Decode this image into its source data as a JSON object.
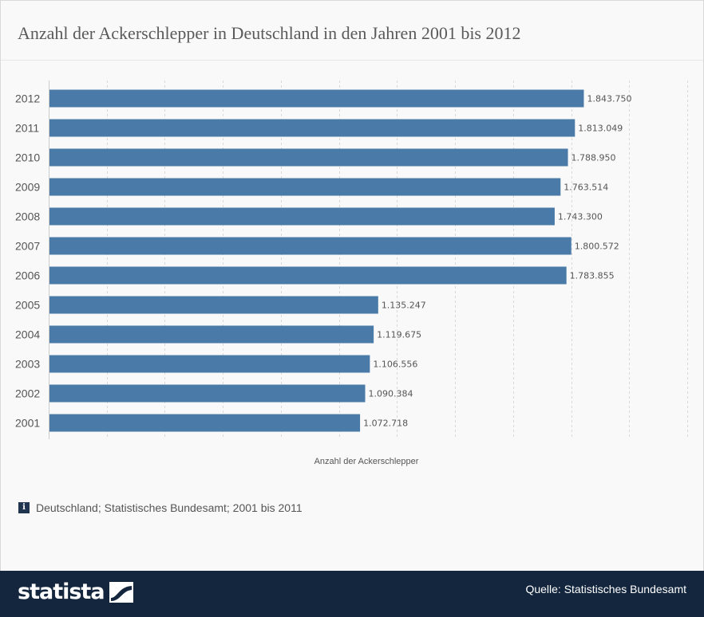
{
  "title": "Anzahl der Ackerschlepper in Deutschland in den Jahren 2001 bis 2012",
  "note": "Deutschland; Statistisches Bundesamt; 2001 bis 2011",
  "footer": {
    "logo": "statista",
    "source": "Quelle: Statistisches Bundesamt"
  },
  "icons": {
    "info": "info-icon",
    "logo_mark": "statista-logo-icon"
  },
  "colors": {
    "bar": "#4a7aa8",
    "footer": "#13263d"
  },
  "chart_data": {
    "type": "bar",
    "orientation": "horizontal",
    "categories": [
      "2012",
      "2011",
      "2010",
      "2009",
      "2008",
      "2007",
      "2006",
      "2005",
      "2004",
      "2003",
      "2002",
      "2001"
    ],
    "values": [
      1843750,
      1813049,
      1788950,
      1763514,
      1743300,
      1800572,
      1783855,
      1135247,
      1119675,
      1106556,
      1090384,
      1072718
    ],
    "value_labels": [
      "1.843.750",
      "1.813.049",
      "1.788.950",
      "1.763.514",
      "1.743.300",
      "1.800.572",
      "1.783.855",
      "1.135.247",
      "1.119.675",
      "1.106.556",
      "1.090.384",
      "1.072.718"
    ],
    "xlabel": "Anzahl der Ackerschlepper",
    "ylabel": "",
    "xlim": [
      0,
      2200000
    ],
    "grid": true,
    "legend": "none"
  }
}
